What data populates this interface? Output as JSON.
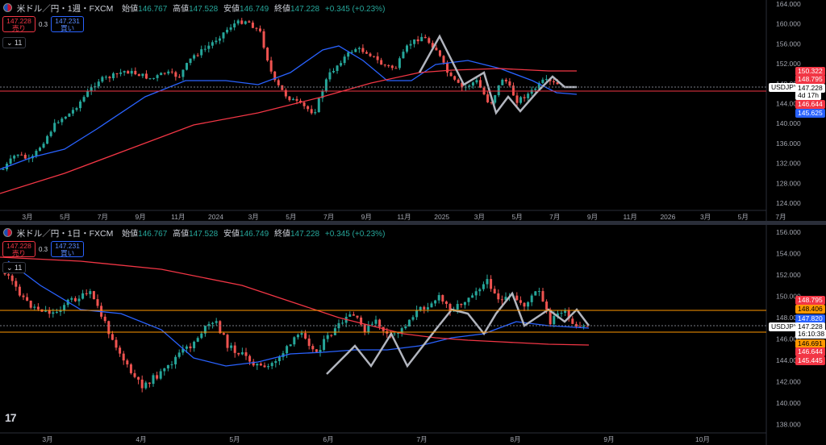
{
  "panels": [
    {
      "id": "weekly",
      "title": "米ドル／円・1週・FXCM",
      "ohlc": {
        "open_label": "始値",
        "open": "146.767",
        "high_label": "高値",
        "high": "147.528",
        "low_label": "安値",
        "low": "146.749",
        "close_label": "終値",
        "close": "147.228",
        "change": "+0.345 (+0.23%)"
      },
      "sell": {
        "price": "147.228",
        "label": "売り"
      },
      "buy": {
        "price": "147.231",
        "label": "買い"
      },
      "spread": "0.3",
      "collapse_label": "11",
      "y_ticks": [
        "164.000",
        "160.000",
        "156.000",
        "152.000",
        "148.000",
        "144.000",
        "140.000",
        "136.000",
        "132.000",
        "128.000",
        "124.000"
      ],
      "x_ticks": [
        "3月",
        "5月",
        "7月",
        "9月",
        "11月",
        "2024",
        "3月",
        "5月",
        "7月",
        "9月",
        "11月",
        "2025",
        "3月",
        "5月",
        "7月",
        "9月",
        "11月",
        "2026",
        "3月",
        "5月",
        "7月"
      ],
      "price_labels": [
        {
          "text": "150.322",
          "color": "#f23645",
          "fg": "#fff"
        },
        {
          "text": "148.795",
          "color": "#f23645",
          "fg": "#fff"
        },
        {
          "text": "147.228",
          "color": "#ffffff",
          "fg": "#000"
        },
        {
          "text": "4d 17h",
          "color": "#ffffff",
          "fg": "#000"
        },
        {
          "text": "146.644",
          "color": "#f23645",
          "fg": "#fff"
        },
        {
          "text": "145.625",
          "color": "#2962ff",
          "fg": "#fff"
        }
      ],
      "symbol_tag": "USDJPY"
    },
    {
      "id": "daily",
      "title": "米ドル／円・1日・FXCM",
      "ohlc": {
        "open_label": "始値",
        "open": "146.767",
        "high_label": "高値",
        "high": "147.528",
        "low_label": "安値",
        "low": "146.749",
        "close_label": "終値",
        "close": "147.228",
        "change": "+0.345 (+0.23%)"
      },
      "sell": {
        "price": "147.228",
        "label": "売り"
      },
      "buy": {
        "price": "147.231",
        "label": "買い"
      },
      "spread": "0.3",
      "collapse_label": "11",
      "y_ticks": [
        "156.000",
        "154.000",
        "152.000",
        "150.000",
        "148.000",
        "146.000",
        "144.000",
        "142.000",
        "140.000",
        "138.000"
      ],
      "x_ticks": [
        "3月",
        "4月",
        "5月",
        "6月",
        "7月",
        "8月",
        "9月",
        "10月"
      ],
      "price_labels": [
        {
          "text": "148.795",
          "color": "#f23645",
          "fg": "#fff"
        },
        {
          "text": "148.406",
          "color": "#ff9800",
          "fg": "#000"
        },
        {
          "text": "147.820",
          "color": "#2962ff",
          "fg": "#fff"
        },
        {
          "text": "147.228",
          "color": "#ffffff",
          "fg": "#000"
        },
        {
          "text": "16:10:38",
          "color": "#ffffff",
          "fg": "#000"
        },
        {
          "text": "146.691",
          "color": "#ff9800",
          "fg": "#000"
        },
        {
          "text": "146.644",
          "color": "#f23645",
          "fg": "#fff"
        },
        {
          "text": "145.445",
          "color": "#f23645",
          "fg": "#fff"
        }
      ],
      "symbol_tag": "USDJPY"
    }
  ],
  "colors": {
    "up": "#26a69a",
    "down": "#ef5350",
    "ma_short": "#2962ff",
    "ma_long": "#f23645",
    "zigzag": "#b2b5be",
    "hline": "#ff9800"
  },
  "logo_text": "17"
}
